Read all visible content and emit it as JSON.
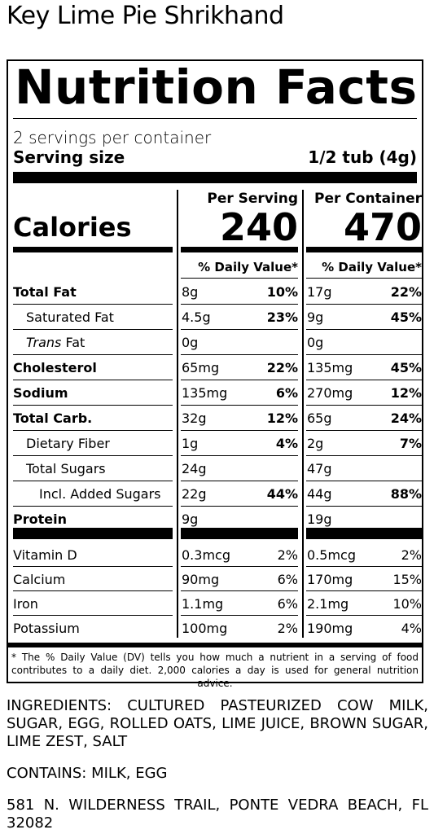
{
  "product_name": "Key Lime Pie Shrikhand",
  "label": {
    "heading": "Nutrition Facts",
    "servings_per_container": "2 servings per container",
    "serving_size_label": "Serving size",
    "serving_size_value": "1/2 tub (4g)",
    "col_per_serving": "Per Serving",
    "col_per_container": "Per Container",
    "calories_label": "Calories",
    "calories_serving": "240",
    "calories_container": "470",
    "dv_header": "% Daily Value*",
    "nutrients": [
      {
        "name": "Total Fat",
        "s_amt": "8g",
        "s_dv": "10%",
        "c_amt": "17g",
        "c_dv": "22%"
      },
      {
        "name": "Saturated Fat",
        "s_amt": "4.5g",
        "s_dv": "23%",
        "c_amt": "9g",
        "c_dv": "45%"
      },
      {
        "name_italic": "Trans",
        "name": " Fat",
        "s_amt": "0g",
        "s_dv": "",
        "c_amt": "0g",
        "c_dv": ""
      },
      {
        "name": "Cholesterol",
        "s_amt": "65mg",
        "s_dv": "22%",
        "c_amt": "135mg",
        "c_dv": "45%"
      },
      {
        "name": "Sodium",
        "s_amt": "135mg",
        "s_dv": "6%",
        "c_amt": "270mg",
        "c_dv": "12%"
      },
      {
        "name": "Total Carb.",
        "s_amt": "32g",
        "s_dv": "12%",
        "c_amt": "65g",
        "c_dv": "24%"
      },
      {
        "name": "Dietary Fiber",
        "s_amt": "1g",
        "s_dv": "4%",
        "c_amt": "2g",
        "c_dv": "7%"
      },
      {
        "name": "Total Sugars",
        "s_amt": "24g",
        "s_dv": "",
        "c_amt": "47g",
        "c_dv": ""
      },
      {
        "name": "Incl. Added Sugars",
        "s_amt": "22g",
        "s_dv": "44%",
        "c_amt": "44g",
        "c_dv": "88%"
      },
      {
        "name": "Protein",
        "s_amt": "9g",
        "s_dv": "",
        "c_amt": "19g",
        "c_dv": ""
      }
    ],
    "vitamins": [
      {
        "name": "Vitamin D",
        "s_amt": "0.3mcg",
        "s_dv": "2%",
        "c_amt": "0.5mcg",
        "c_dv": "2%"
      },
      {
        "name": "Calcium",
        "s_amt": "90mg",
        "s_dv": "6%",
        "c_amt": "170mg",
        "c_dv": "15%"
      },
      {
        "name": "Iron",
        "s_amt": "1.1mg",
        "s_dv": "6%",
        "c_amt": "2.1mg",
        "c_dv": "10%"
      },
      {
        "name": "Potassium",
        "s_amt": "100mg",
        "s_dv": "2%",
        "c_amt": "190mg",
        "c_dv": "4%"
      }
    ],
    "footnote": "* The % Daily Value (DV) tells you how much a nutrient in a serving of food contributes to a daily diet. 2,000 calories a day is used for general nutrition advice."
  },
  "ingredients": "INGREDIENTS: CULTURED PASTEURIZED COW MILK, SUGAR, EGG, ROLLED OATS, LIME JUICE, BROWN SUGAR, LIME ZEST, SALT",
  "contains": "CONTAINS: MILK, EGG",
  "address": "581 N. WILDERNESS TRAIL, PONTE VEDRA BEACH, FL 32082"
}
